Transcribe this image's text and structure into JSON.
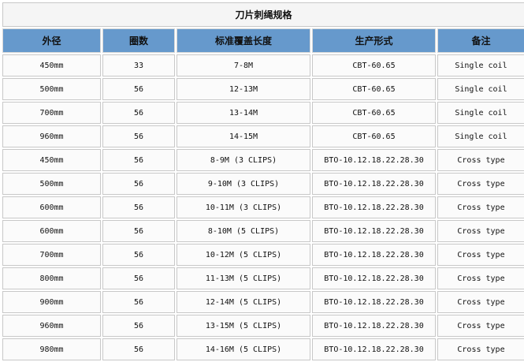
{
  "title": "刀片刺绳规格",
  "headers": [
    "外径",
    "圈数",
    "标准覆盖长度",
    "生产形式",
    "备注"
  ],
  "rows": [
    [
      "450mm",
      "33",
      "7-8M",
      "CBT-60.65",
      "Single coil"
    ],
    [
      "500mm",
      "56",
      "12-13M",
      "CBT-60.65",
      "Single coil"
    ],
    [
      "700mm",
      "56",
      "13-14M",
      "CBT-60.65",
      "Single coil"
    ],
    [
      "960mm",
      "56",
      "14-15M",
      "CBT-60.65",
      "Single coil"
    ],
    [
      "450mm",
      "56",
      "8-9M (3 CLIPS)",
      "BTO-10.12.18.22.28.30",
      "Cross type"
    ],
    [
      "500mm",
      "56",
      "9-10M (3 CLIPS)",
      "BTO-10.12.18.22.28.30",
      "Cross type"
    ],
    [
      "600mm",
      "56",
      "10-11M (3 CLIPS)",
      "BTO-10.12.18.22.28.30",
      "Cross type"
    ],
    [
      "600mm",
      "56",
      "8-10M (5 CLIPS)",
      "BTO-10.12.18.22.28.30",
      "Cross type"
    ],
    [
      "700mm",
      "56",
      "10-12M (5 CLIPS)",
      "BTO-10.12.18.22.28.30",
      "Cross type"
    ],
    [
      "800mm",
      "56",
      "11-13M (5 CLIPS)",
      "BTO-10.12.18.22.28.30",
      "Cross type"
    ],
    [
      "900mm",
      "56",
      "12-14M (5 CLIPS)",
      "BTO-10.12.18.22.28.30",
      "Cross type"
    ],
    [
      "960mm",
      "56",
      "13-15M (5 CLIPS)",
      "BTO-10.12.18.22.28.30",
      "Cross type"
    ],
    [
      "980mm",
      "56",
      "14-16M (5 CLIPS)",
      "BTO-10.12.18.22.28.30",
      "Cross type"
    ]
  ],
  "colors": {
    "header_bg": "#6699cc",
    "title_bg": "#f5f5f5",
    "cell_bg": "#fbfbfb",
    "border": "#c8c8c8"
  }
}
